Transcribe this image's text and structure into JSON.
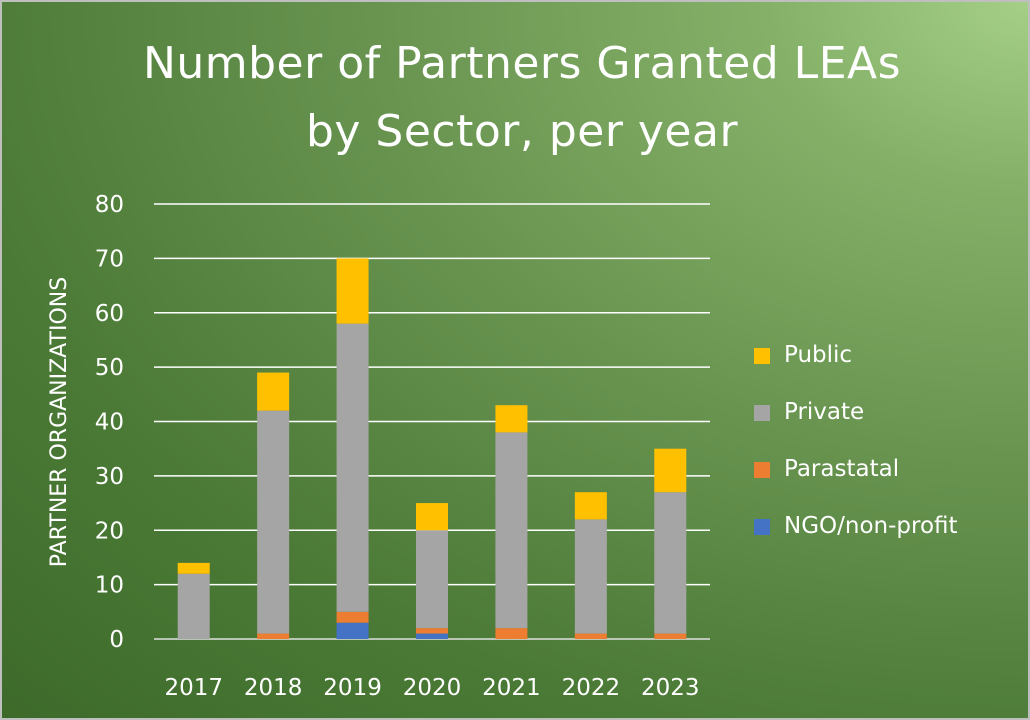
{
  "chart_data": {
    "type": "bar",
    "stacked": true,
    "title": [
      "Number of Partners Granted LEAs",
      "by Sector, per year"
    ],
    "xlabel": "",
    "ylabel": "PARTNER ORGANIZATIONS",
    "ylim": [
      0,
      80
    ],
    "yticks": [
      0,
      10,
      20,
      30,
      40,
      50,
      60,
      70,
      80
    ],
    "grid": true,
    "legend_position": "right",
    "categories": [
      "2017",
      "2018",
      "2019",
      "2020",
      "2021",
      "2022",
      "2023"
    ],
    "series": [
      {
        "name": "NGO/non-profit",
        "color": "#4472c4",
        "values": [
          0,
          0,
          3,
          1,
          0,
          0,
          0
        ]
      },
      {
        "name": "Parastatal",
        "color": "#ed7d31",
        "values": [
          0,
          1,
          2,
          1,
          2,
          1,
          1
        ]
      },
      {
        "name": "Private",
        "color": "#a5a5a5",
        "values": [
          12,
          41,
          53,
          18,
          36,
          21,
          26
        ]
      },
      {
        "name": "Public",
        "color": "#ffc000",
        "values": [
          2,
          7,
          12,
          5,
          5,
          5,
          8
        ]
      }
    ],
    "legend_order": [
      "Public",
      "Private",
      "Parastatal",
      "NGO/non-profit"
    ]
  }
}
